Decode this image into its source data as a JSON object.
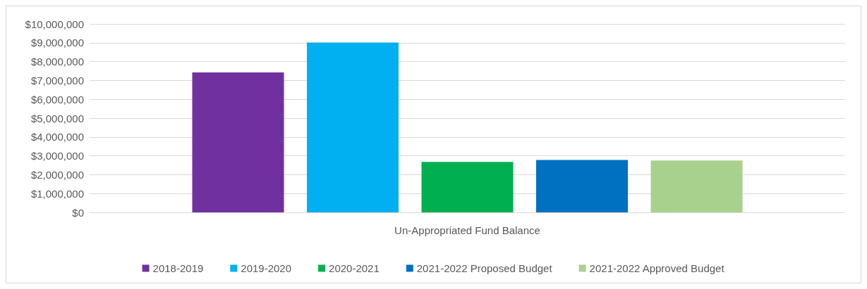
{
  "chart_data": {
    "type": "bar",
    "categories": [
      "Un-Appropriated Fund Balance"
    ],
    "series": [
      {
        "name": "2018-2019",
        "color": "#7030a0",
        "values": [
          7430000
        ]
      },
      {
        "name": "2019-2020",
        "color": "#00b0f0",
        "values": [
          9010000
        ]
      },
      {
        "name": "2020-2021",
        "color": "#00b050",
        "values": [
          2680000
        ]
      },
      {
        "name": "2021-2022 Proposed Budget",
        "color": "#0070c0",
        "values": [
          2780000
        ]
      },
      {
        "name": "2021-2022 Approved Budget",
        "color": "#a9d18e",
        "values": [
          2750000
        ]
      }
    ],
    "ylim": [
      0,
      10000000
    ],
    "yticks": [
      {
        "value": 0,
        "label": "$0"
      },
      {
        "value": 1000000,
        "label": "$1,000,000"
      },
      {
        "value": 2000000,
        "label": "$2,000,000"
      },
      {
        "value": 3000000,
        "label": "$3,000,000"
      },
      {
        "value": 4000000,
        "label": "$4,000,000"
      },
      {
        "value": 5000000,
        "label": "$5,000,000"
      },
      {
        "value": 6000000,
        "label": "$6,000,000"
      },
      {
        "value": 7000000,
        "label": "$7,000,000"
      },
      {
        "value": 8000000,
        "label": "$8,000,000"
      },
      {
        "value": 9000000,
        "label": "$9,000,000"
      },
      {
        "value": 10000000,
        "label": "$10,000,000"
      }
    ],
    "grid": "y",
    "legend": "bottom"
  }
}
